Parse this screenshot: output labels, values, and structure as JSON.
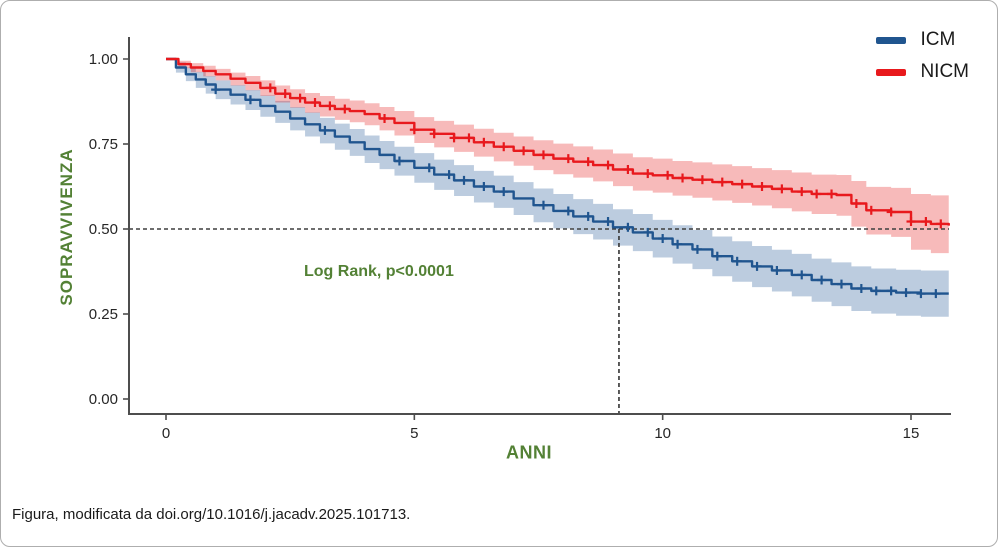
{
  "figure": {
    "caption": "Figura, modificata da doi.org/10.1016/j.jacadv.2025.101713."
  },
  "colors": {
    "accent_green": "#538135",
    "axis_gray": "#4d4d4d",
    "tick_text": "#262626",
    "dashed_line": "#3f3f3f",
    "border_gray": "#aeaeae"
  },
  "chart_data": {
    "type": "line",
    "subtype": "kaplan_meier_step",
    "title": "",
    "xlabel": "ANNI",
    "ylabel": "SOPRAVVIVENZA",
    "xlim": [
      0,
      15.8
    ],
    "ylim": [
      0,
      1.0
    ],
    "grid": false,
    "legend_position": "top-right",
    "xtick_values": [
      0,
      5,
      10,
      15
    ],
    "xtick_labels": [
      "0",
      "5",
      "10",
      "15"
    ],
    "ytick_values": [
      0.0,
      0.25,
      0.5,
      0.75,
      1.0
    ],
    "ytick_labels": [
      "0.00",
      "0.25",
      "0.50",
      "0.75",
      "1.00"
    ],
    "annotation": {
      "text": "Log Rank, p<0.0001",
      "x": 2.8,
      "y": 0.38
    },
    "reference_lines": {
      "horizontal_y": 0.5,
      "vertical_x": 9.12
    },
    "median_survival_icm_years": 9.1,
    "series": [
      {
        "name": "ICM",
        "color": "#20558f",
        "band_color": "rgba(32,85,150,0.30)",
        "points": [
          [
            0,
            1.0,
            1.0,
            1.0
          ],
          [
            0.2,
            0.975,
            0.96,
            0.99
          ],
          [
            0.4,
            0.955,
            0.935,
            0.975
          ],
          [
            0.6,
            0.94,
            0.915,
            0.962
          ],
          [
            0.8,
            0.925,
            0.898,
            0.95
          ],
          [
            1.0,
            0.91,
            0.882,
            0.937
          ],
          [
            1.3,
            0.895,
            0.866,
            0.923
          ],
          [
            1.6,
            0.88,
            0.85,
            0.909
          ],
          [
            1.9,
            0.862,
            0.83,
            0.893
          ],
          [
            2.2,
            0.845,
            0.812,
            0.877
          ],
          [
            2.5,
            0.825,
            0.79,
            0.859
          ],
          [
            2.8,
            0.808,
            0.772,
            0.843
          ],
          [
            3.1,
            0.79,
            0.752,
            0.827
          ],
          [
            3.4,
            0.772,
            0.733,
            0.81
          ],
          [
            3.7,
            0.755,
            0.715,
            0.794
          ],
          [
            4.0,
            0.735,
            0.694,
            0.775
          ],
          [
            4.3,
            0.718,
            0.676,
            0.759
          ],
          [
            4.6,
            0.7,
            0.657,
            0.742
          ],
          [
            5.0,
            0.68,
            0.636,
            0.723
          ],
          [
            5.4,
            0.66,
            0.615,
            0.704
          ],
          [
            5.8,
            0.643,
            0.597,
            0.688
          ],
          [
            6.2,
            0.625,
            0.578,
            0.671
          ],
          [
            6.6,
            0.61,
            0.562,
            0.657
          ],
          [
            7.0,
            0.59,
            0.541,
            0.638
          ],
          [
            7.4,
            0.57,
            0.52,
            0.619
          ],
          [
            7.8,
            0.553,
            0.502,
            0.603
          ],
          [
            8.2,
            0.537,
            0.485,
            0.588
          ],
          [
            8.6,
            0.522,
            0.469,
            0.574
          ],
          [
            9.0,
            0.505,
            0.451,
            0.558
          ],
          [
            9.4,
            0.49,
            0.435,
            0.544
          ],
          [
            9.8,
            0.472,
            0.416,
            0.527
          ],
          [
            10.2,
            0.455,
            0.398,
            0.511
          ],
          [
            10.6,
            0.44,
            0.382,
            0.497
          ],
          [
            11.0,
            0.42,
            0.361,
            0.478
          ],
          [
            11.4,
            0.405,
            0.345,
            0.464
          ],
          [
            11.8,
            0.39,
            0.329,
            0.45
          ],
          [
            12.2,
            0.378,
            0.316,
            0.439
          ],
          [
            12.6,
            0.365,
            0.302,
            0.427
          ],
          [
            13.0,
            0.35,
            0.286,
            0.413
          ],
          [
            13.4,
            0.338,
            0.273,
            0.402
          ],
          [
            13.8,
            0.325,
            0.259,
            0.39
          ],
          [
            14.2,
            0.318,
            0.251,
            0.384
          ],
          [
            14.7,
            0.313,
            0.245,
            0.38
          ],
          [
            15.2,
            0.31,
            0.242,
            0.378
          ],
          [
            15.76,
            0.31,
            0.242,
            0.378
          ]
        ],
        "censor_times": [
          1.0,
          1.7,
          3.2,
          4.7,
          5.3,
          5.7,
          6.0,
          6.4,
          6.8,
          7.6,
          8.1,
          8.5,
          8.9,
          9.3,
          9.7,
          10.0,
          10.3,
          10.7,
          11.1,
          11.5,
          11.9,
          12.3,
          12.8,
          13.2,
          13.6,
          14.0,
          14.3,
          14.6,
          14.9,
          15.2,
          15.5
        ]
      },
      {
        "name": "NICM",
        "color": "#e8191d",
        "band_color": "rgba(228,26,28,0.30)",
        "points": [
          [
            0,
            1.0,
            1.0,
            1.0
          ],
          [
            0.25,
            0.985,
            0.973,
            0.995
          ],
          [
            0.5,
            0.975,
            0.961,
            0.988
          ],
          [
            0.75,
            0.965,
            0.949,
            0.98
          ],
          [
            1.0,
            0.955,
            0.937,
            0.971
          ],
          [
            1.3,
            0.942,
            0.922,
            0.96
          ],
          [
            1.6,
            0.93,
            0.908,
            0.95
          ],
          [
            1.9,
            0.915,
            0.891,
            0.937
          ],
          [
            2.2,
            0.898,
            0.872,
            0.922
          ],
          [
            2.5,
            0.885,
            0.857,
            0.911
          ],
          [
            2.8,
            0.872,
            0.842,
            0.9
          ],
          [
            3.1,
            0.862,
            0.831,
            0.891
          ],
          [
            3.4,
            0.853,
            0.821,
            0.883
          ],
          [
            3.7,
            0.847,
            0.814,
            0.878
          ],
          [
            4.0,
            0.838,
            0.805,
            0.87
          ],
          [
            4.3,
            0.825,
            0.79,
            0.859
          ],
          [
            4.6,
            0.812,
            0.775,
            0.847
          ],
          [
            5.0,
            0.792,
            0.753,
            0.829
          ],
          [
            5.4,
            0.78,
            0.74,
            0.818
          ],
          [
            5.8,
            0.768,
            0.727,
            0.807
          ],
          [
            6.2,
            0.755,
            0.713,
            0.795
          ],
          [
            6.6,
            0.742,
            0.699,
            0.783
          ],
          [
            7.0,
            0.73,
            0.686,
            0.772
          ],
          [
            7.4,
            0.718,
            0.673,
            0.761
          ],
          [
            7.8,
            0.707,
            0.661,
            0.751
          ],
          [
            8.2,
            0.698,
            0.651,
            0.743
          ],
          [
            8.6,
            0.688,
            0.64,
            0.734
          ],
          [
            9.0,
            0.675,
            0.626,
            0.722
          ],
          [
            9.4,
            0.663,
            0.613,
            0.711
          ],
          [
            9.8,
            0.658,
            0.607,
            0.707
          ],
          [
            10.2,
            0.65,
            0.598,
            0.7
          ],
          [
            10.6,
            0.645,
            0.592,
            0.696
          ],
          [
            11.0,
            0.638,
            0.584,
            0.69
          ],
          [
            11.4,
            0.632,
            0.577,
            0.685
          ],
          [
            11.8,
            0.625,
            0.569,
            0.679
          ],
          [
            12.2,
            0.618,
            0.561,
            0.673
          ],
          [
            12.6,
            0.61,
            0.552,
            0.666
          ],
          [
            13.0,
            0.603,
            0.544,
            0.66
          ],
          [
            13.5,
            0.6,
            0.539,
            0.659
          ],
          [
            13.8,
            0.575,
            0.507,
            0.641
          ],
          [
            14.1,
            0.555,
            0.484,
            0.624
          ],
          [
            14.6,
            0.55,
            0.477,
            0.621
          ],
          [
            15.0,
            0.522,
            0.439,
            0.603
          ],
          [
            15.4,
            0.515,
            0.429,
            0.599
          ],
          [
            15.76,
            0.51,
            0.424,
            0.595
          ]
        ],
        "censor_times": [
          2.1,
          2.4,
          2.7,
          3.0,
          3.3,
          3.6,
          4.4,
          5.0,
          5.4,
          5.8,
          6.1,
          6.4,
          6.8,
          7.2,
          7.6,
          8.1,
          8.5,
          8.9,
          9.3,
          9.7,
          10.1,
          10.4,
          10.8,
          11.2,
          11.6,
          12.0,
          12.4,
          12.8,
          13.1,
          13.4,
          13.9,
          14.2,
          14.6,
          15.0,
          15.3,
          15.6
        ]
      }
    ]
  }
}
